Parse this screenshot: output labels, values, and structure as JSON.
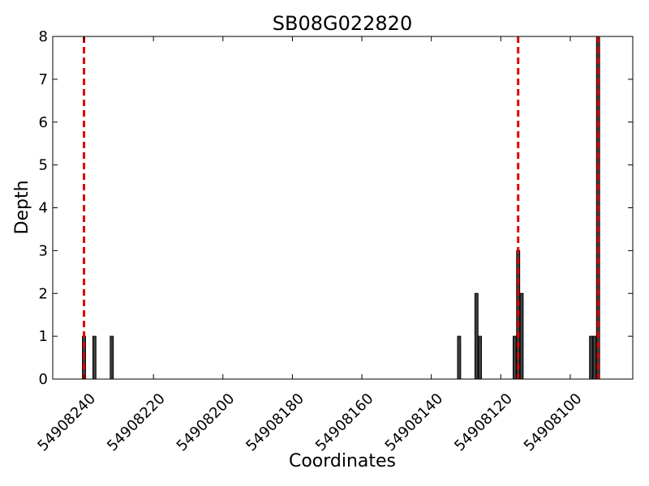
{
  "chart_data": {
    "type": "bar",
    "title": "SB08G022820",
    "xlabel": "Coordinates",
    "ylabel": "Depth",
    "xlim": [
      54908249,
      54908082
    ],
    "ylim": [
      0,
      8
    ],
    "x_ticks": [
      54908240,
      54908220,
      54908200,
      54908180,
      54908160,
      54908140,
      54908120,
      54908100
    ],
    "x_tick_labels": [
      "54908240",
      "54908220",
      "54908200",
      "54908180",
      "54908160",
      "54908140",
      "54908120",
      "54908100"
    ],
    "y_ticks": [
      0,
      1,
      2,
      3,
      4,
      5,
      6,
      7,
      8
    ],
    "y_tick_labels": [
      "0",
      "1",
      "2",
      "3",
      "4",
      "5",
      "6",
      "7",
      "8"
    ],
    "bars": [
      {
        "x": 54908240,
        "value": 1
      },
      {
        "x": 54908237,
        "value": 1
      },
      {
        "x": 54908232,
        "value": 1
      },
      {
        "x": 54908132,
        "value": 1
      },
      {
        "x": 54908127,
        "value": 2
      },
      {
        "x": 54908126,
        "value": 1
      },
      {
        "x": 54908116,
        "value": 1
      },
      {
        "x": 54908115,
        "value": 3
      },
      {
        "x": 54908114,
        "value": 2
      },
      {
        "x": 54908094,
        "value": 1
      },
      {
        "x": 54908093,
        "value": 1
      },
      {
        "x": 54908092,
        "value": 8
      }
    ],
    "vlines": [
      54908240,
      54908115,
      54908092
    ],
    "bar_color": "#404040",
    "bar_edge_color": "#000000",
    "vline_color": "#e00000",
    "grid": false,
    "x_reversed": true
  }
}
